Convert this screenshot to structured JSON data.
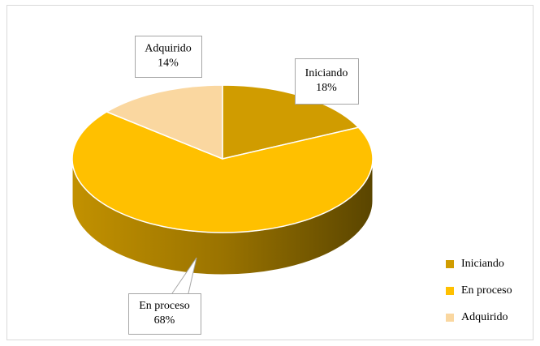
{
  "chart_data": {
    "type": "pie",
    "categories": [
      "Iniciando",
      "En proceso",
      "Adquirido"
    ],
    "values": [
      18,
      68,
      14
    ],
    "value_labels": [
      "18%",
      "68%",
      "14%"
    ],
    "colors": [
      "#D09C00",
      "#FFC000",
      "#FAD7A0"
    ],
    "legend": "right"
  }
}
